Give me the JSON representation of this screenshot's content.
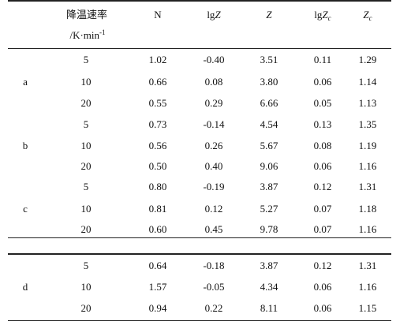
{
  "header": {
    "rate_label_line1": "降温速率",
    "rate_label_line2": "/K·min",
    "rate_label_exp": "-1",
    "col_n": "N",
    "col_lgz_prefix": "lg",
    "col_lgz_var": "Z",
    "col_z": "Z",
    "col_lgzc_prefix": "lg",
    "col_lgzc_var": "Z",
    "col_lgzc_sub": "c",
    "col_zc_var": "Z",
    "col_zc_sub": "c"
  },
  "groups": [
    {
      "label": "a",
      "rows": [
        {
          "rate": "5",
          "n": "1.02",
          "lgz": "-0.40",
          "z": "3.51",
          "lgzc": "0.11",
          "zc": "1.29"
        },
        {
          "rate": "10",
          "n": "0.66",
          "lgz": "0.08",
          "z": "3.80",
          "lgzc": "0.06",
          "zc": "1.14"
        },
        {
          "rate": "20",
          "n": "0.55",
          "lgz": "0.29",
          "z": "6.66",
          "lgzc": "0.05",
          "zc": "1.13"
        }
      ]
    },
    {
      "label": "b",
      "rows": [
        {
          "rate": "5",
          "n": "0.73",
          "lgz": "-0.14",
          "z": "4.54",
          "lgzc": "0.13",
          "zc": "1.35"
        },
        {
          "rate": "10",
          "n": "0.56",
          "lgz": "0.26",
          "z": "5.67",
          "lgzc": "0.08",
          "zc": "1.19"
        },
        {
          "rate": "20",
          "n": "0.50",
          "lgz": "0.40",
          "z": "9.06",
          "lgzc": "0.06",
          "zc": "1.16"
        }
      ]
    },
    {
      "label": "c",
      "rows": [
        {
          "rate": "5",
          "n": "0.80",
          "lgz": "-0.19",
          "z": "3.87",
          "lgzc": "0.12",
          "zc": "1.31"
        },
        {
          "rate": "10",
          "n": "0.81",
          "lgz": "0.12",
          "z": "5.27",
          "lgzc": "0.07",
          "zc": "1.18"
        },
        {
          "rate": "20",
          "n": "0.60",
          "lgz": "0.45",
          "z": "9.78",
          "lgzc": "0.07",
          "zc": "1.16"
        }
      ]
    },
    {
      "label": "d",
      "rows": [
        {
          "rate": "5",
          "n": "0.64",
          "lgz": "-0.18",
          "z": "3.87",
          "lgzc": "0.12",
          "zc": "1.31"
        },
        {
          "rate": "10",
          "n": "1.57",
          "lgz": "-0.05",
          "z": "4.34",
          "lgzc": "0.06",
          "zc": "1.16"
        },
        {
          "rate": "20",
          "n": "0.94",
          "lgz": "0.22",
          "z": "8.11",
          "lgzc": "0.06",
          "zc": "1.15"
        }
      ]
    }
  ]
}
